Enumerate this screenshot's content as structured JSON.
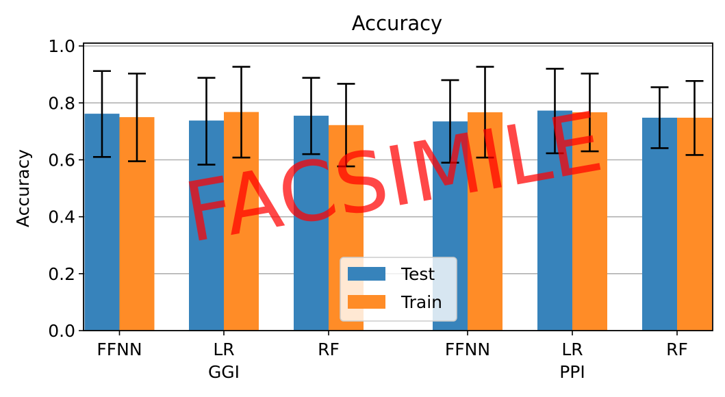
{
  "chart_data": {
    "type": "bar",
    "title": "Accuracy",
    "ylabel": "Accuracy",
    "xlabel": "",
    "ylim": [
      0.0,
      1.0
    ],
    "yticks": [
      "0.0",
      "0.2",
      "0.4",
      "0.6",
      "0.8",
      "1.0"
    ],
    "grid": "horizontal",
    "legend_position": "bottom-center",
    "groups": [
      {
        "label": "GGI",
        "categories": [
          "FFNN",
          "LR",
          "RF"
        ]
      },
      {
        "label": "PPI",
        "categories": [
          "FFNN",
          "LR",
          "RF"
        ]
      }
    ],
    "categories": [
      "FFNN",
      "LR",
      "RF",
      "FFNN",
      "LR",
      "RF"
    ],
    "series": [
      {
        "name": "Test",
        "color": "#3783bb",
        "values": [
          0.762,
          0.738,
          0.755,
          0.735,
          0.773,
          0.748
        ],
        "err_low": [
          0.61,
          0.583,
          0.62,
          0.59,
          0.623,
          0.641
        ],
        "err_high": [
          0.912,
          0.888,
          0.888,
          0.88,
          0.92,
          0.855
        ]
      },
      {
        "name": "Train",
        "color": "#ff8c27",
        "values": [
          0.75,
          0.768,
          0.722,
          0.767,
          0.767,
          0.748
        ],
        "err_low": [
          0.595,
          0.608,
          0.577,
          0.608,
          0.63,
          0.617
        ],
        "err_high": [
          0.903,
          0.927,
          0.867,
          0.927,
          0.903,
          0.877
        ]
      }
    ]
  },
  "watermark": {
    "text": "FACSIMILE",
    "color": "#ff0000"
  }
}
